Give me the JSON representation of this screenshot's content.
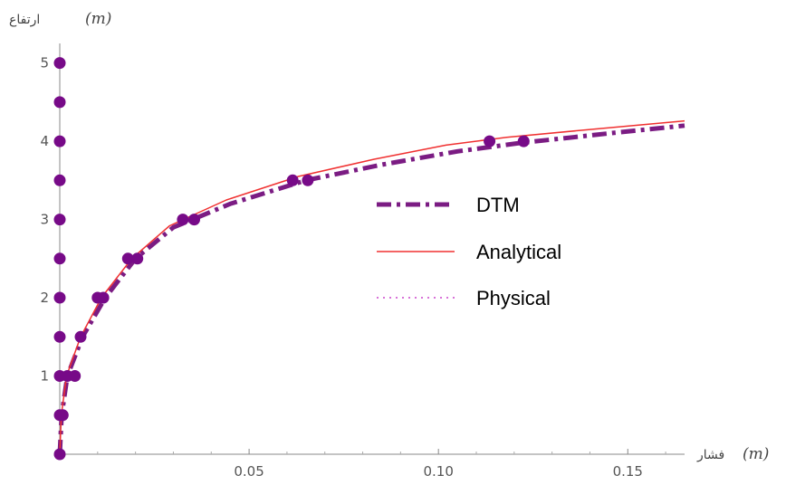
{
  "chart_data": {
    "type": "line",
    "xlabel": "فشار",
    "ylabel": "ارتفاع",
    "x_unit": "(m)",
    "y_unit": "(m)",
    "xlim": [
      0,
      0.165
    ],
    "ylim": [
      0,
      5.25
    ],
    "x_ticks": [
      0.05,
      0.1,
      0.15
    ],
    "x_tick_labels": [
      "0.05",
      "0.10",
      "0.15"
    ],
    "y_ticks": [
      1,
      2,
      3,
      4,
      5
    ],
    "y_tick_labels": [
      "1",
      "2",
      "3",
      "4",
      "5"
    ],
    "grid": false,
    "legend_position": "center-right",
    "series": [
      {
        "name": "DTM",
        "style": "dash-dot",
        "color": "#7b1c83",
        "x": [
          0,
          0.0005,
          0.002,
          0.006,
          0.012,
          0.02,
          0.03,
          0.035,
          0.045,
          0.065,
          0.085,
          0.105,
          0.122,
          0.145,
          0.165
        ],
        "y": [
          0,
          0.5,
          1.0,
          1.5,
          2.0,
          2.5,
          2.9,
          3.0,
          3.2,
          3.5,
          3.7,
          3.87,
          3.98,
          4.1,
          4.2
        ]
      },
      {
        "name": "Analytical",
        "style": "solid",
        "color": "#f03030",
        "x": [
          0,
          0.0004,
          0.0018,
          0.0055,
          0.011,
          0.019,
          0.029,
          0.034,
          0.044,
          0.063,
          0.083,
          0.102,
          0.118,
          0.14,
          0.165
        ],
        "y": [
          0,
          0.5,
          1.0,
          1.5,
          2.0,
          2.5,
          2.92,
          3.03,
          3.25,
          3.55,
          3.77,
          3.95,
          4.05,
          4.15,
          4.26
        ]
      },
      {
        "name": "Physical",
        "style": "dotted",
        "color": "#cc44cc",
        "x": [],
        "y": []
      }
    ],
    "markers": {
      "color": "#770a88",
      "points": [
        {
          "x": 0,
          "y": 0
        },
        {
          "x": 0,
          "y": 0.5
        },
        {
          "x": 0,
          "y": 1.0
        },
        {
          "x": 0,
          "y": 1.5
        },
        {
          "x": 0,
          "y": 2.0
        },
        {
          "x": 0,
          "y": 2.5
        },
        {
          "x": 0,
          "y": 3.0
        },
        {
          "x": 0,
          "y": 3.5
        },
        {
          "x": 0,
          "y": 4.0
        },
        {
          "x": 0,
          "y": 4.5
        },
        {
          "x": 0,
          "y": 5.0
        },
        {
          "x": 0.0008,
          "y": 0.5
        },
        {
          "x": 0.002,
          "y": 1.0
        },
        {
          "x": 0.004,
          "y": 1.0
        },
        {
          "x": 0.0055,
          "y": 1.5
        },
        {
          "x": 0.01,
          "y": 2.0
        },
        {
          "x": 0.0115,
          "y": 2.0
        },
        {
          "x": 0.018,
          "y": 2.5
        },
        {
          "x": 0.0205,
          "y": 2.5
        },
        {
          "x": 0.0325,
          "y": 3.0
        },
        {
          "x": 0.0355,
          "y": 3.0
        },
        {
          "x": 0.0615,
          "y": 3.5
        },
        {
          "x": 0.0655,
          "y": 3.5
        },
        {
          "x": 0.1135,
          "y": 4.0
        },
        {
          "x": 0.1225,
          "y": 4.0
        }
      ]
    }
  }
}
